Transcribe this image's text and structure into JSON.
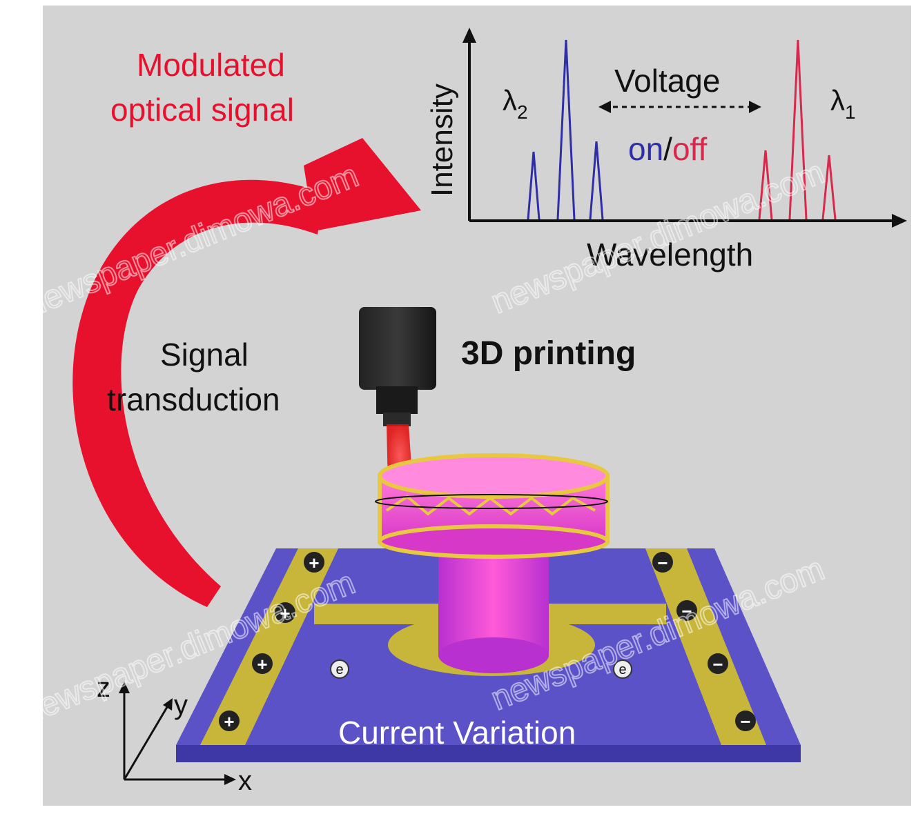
{
  "figure": {
    "modulated_line1": "Modulated",
    "modulated_line2": "optical signal",
    "signal_line1": "Signal",
    "signal_line2": "transduction",
    "printing_label": "3D printing",
    "current_label": "Current Variation"
  },
  "spectrum": {
    "y_label": "Intensity",
    "x_label": "Wavelength",
    "voltage_label": "Voltage",
    "on_label": "on",
    "slash": "/",
    "off_label": "off",
    "lambda2_symbol": "λ",
    "lambda2_sub": "2",
    "lambda1_symbol": "λ",
    "lambda1_sub": "1"
  },
  "axes3d": {
    "x": "x",
    "y": "y",
    "z": "z"
  },
  "electrodes": {
    "positive_symbol": "+",
    "negative_symbol": "−",
    "electron_symbol": "e"
  },
  "watermark": {
    "text": "newspaper.dimowa.com"
  },
  "colors": {
    "background": "#d3d3d3",
    "accent_red": "#e8112d",
    "substrate": "#5b52c8",
    "electrode": "#c7b63a",
    "printed_structure": "#e040c8",
    "blue_peaks": "#2e2ea6",
    "red_peaks": "#d8284c"
  }
}
